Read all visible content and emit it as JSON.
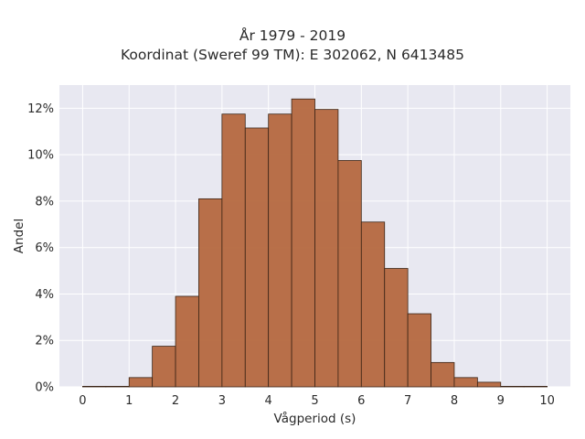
{
  "chart_data": {
    "type": "bar",
    "title": "År 1979 - 2019",
    "subtitle": "Koordinat (Sweref 99 TM): E 302062, N 6413485",
    "xlabel": "Vågperiod (s)",
    "ylabel": "Andel",
    "bin_width": 0.5,
    "bins": [
      {
        "start": 0.0,
        "value": 0.0005
      },
      {
        "start": 0.5,
        "value": 0.0
      },
      {
        "start": 1.0,
        "value": 0.4
      },
      {
        "start": 1.5,
        "value": 1.75
      },
      {
        "start": 2.0,
        "value": 3.9
      },
      {
        "start": 2.5,
        "value": 8.1
      },
      {
        "start": 3.0,
        "value": 11.75
      },
      {
        "start": 3.5,
        "value": 11.15
      },
      {
        "start": 4.0,
        "value": 11.75
      },
      {
        "start": 4.5,
        "value": 12.4
      },
      {
        "start": 5.0,
        "value": 11.95
      },
      {
        "start": 5.5,
        "value": 9.75
      },
      {
        "start": 6.0,
        "value": 7.1
      },
      {
        "start": 6.5,
        "value": 5.1
      },
      {
        "start": 7.0,
        "value": 3.15
      },
      {
        "start": 7.5,
        "value": 1.05
      },
      {
        "start": 8.0,
        "value": 0.4
      },
      {
        "start": 8.5,
        "value": 0.2
      },
      {
        "start": 9.0,
        "value": 0.0005
      },
      {
        "start": 9.5,
        "value": 0.0005
      }
    ],
    "x_ticks": [
      0,
      1,
      2,
      3,
      4,
      5,
      6,
      7,
      8,
      9,
      10
    ],
    "x_tick_labels": [
      "0",
      "1",
      "2",
      "3",
      "4",
      "5",
      "6",
      "7",
      "8",
      "9",
      "10"
    ],
    "y_ticks": [
      0,
      2,
      4,
      6,
      8,
      10,
      12
    ],
    "y_tick_labels": [
      "0%",
      "2%",
      "4%",
      "6%",
      "8%",
      "10%",
      "12%"
    ],
    "xlim": [
      -0.5,
      10.5
    ],
    "ylim": [
      0,
      13
    ],
    "grid": true,
    "colors": {
      "bar_fill": "#b5683f",
      "bar_edge": "#3a2416",
      "plot_background": "#e8e8f1",
      "grid": "#ffffff"
    }
  }
}
